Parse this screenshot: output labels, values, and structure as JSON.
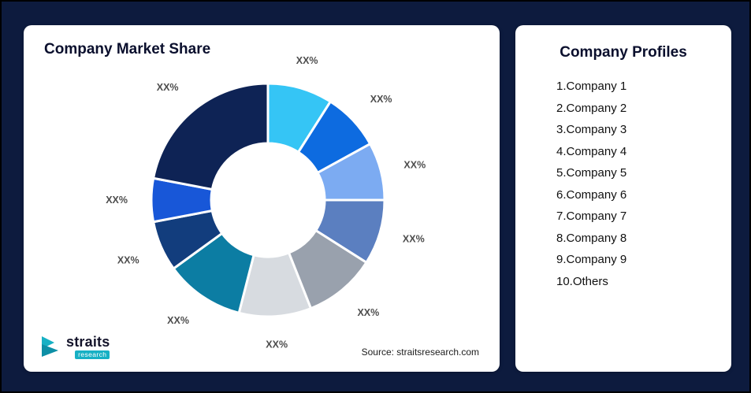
{
  "market_share": {
    "title": "Company Market Share",
    "source": "Source: straitsresearch.com"
  },
  "logo": {
    "name": "straits",
    "sub": "research"
  },
  "profiles": {
    "title": "Company Profiles",
    "items": [
      "1.Company 1",
      "2.Company 2",
      "3.Company 3",
      "4.Company 4",
      "5.Company 5",
      "6.Company 6",
      "7.Company 7",
      "8.Company 8",
      "9.Company 9",
      "10.Others"
    ]
  },
  "chart_data": {
    "type": "pie",
    "subtype": "donut",
    "title": "Company Market Share",
    "categories": [
      "Company 1",
      "Company 2",
      "Company 3",
      "Company 4",
      "Company 5",
      "Company 6",
      "Company 7",
      "Company 8",
      "Company 9",
      "Others"
    ],
    "values": [
      9,
      8,
      8,
      9,
      10,
      10,
      11,
      7,
      6,
      22
    ],
    "labels": [
      "XX%",
      "XX%",
      "XX%",
      "XX%",
      "XX%",
      "XX%",
      "XX%",
      "XX%",
      "XX%",
      "XX%"
    ],
    "colors": [
      "#35c5f5",
      "#0d6be0",
      "#7cabf2",
      "#5b7fc0",
      "#99a1ad",
      "#d7dbe0",
      "#0c7da3",
      "#123d7d",
      "#1857d8",
      "#0e2355"
    ],
    "label_color": "#4d4d4d",
    "start_angle_deg": 0,
    "direction": "clockwise",
    "legend": "none",
    "note_label_style": "percent placeholders shown as XX%"
  }
}
